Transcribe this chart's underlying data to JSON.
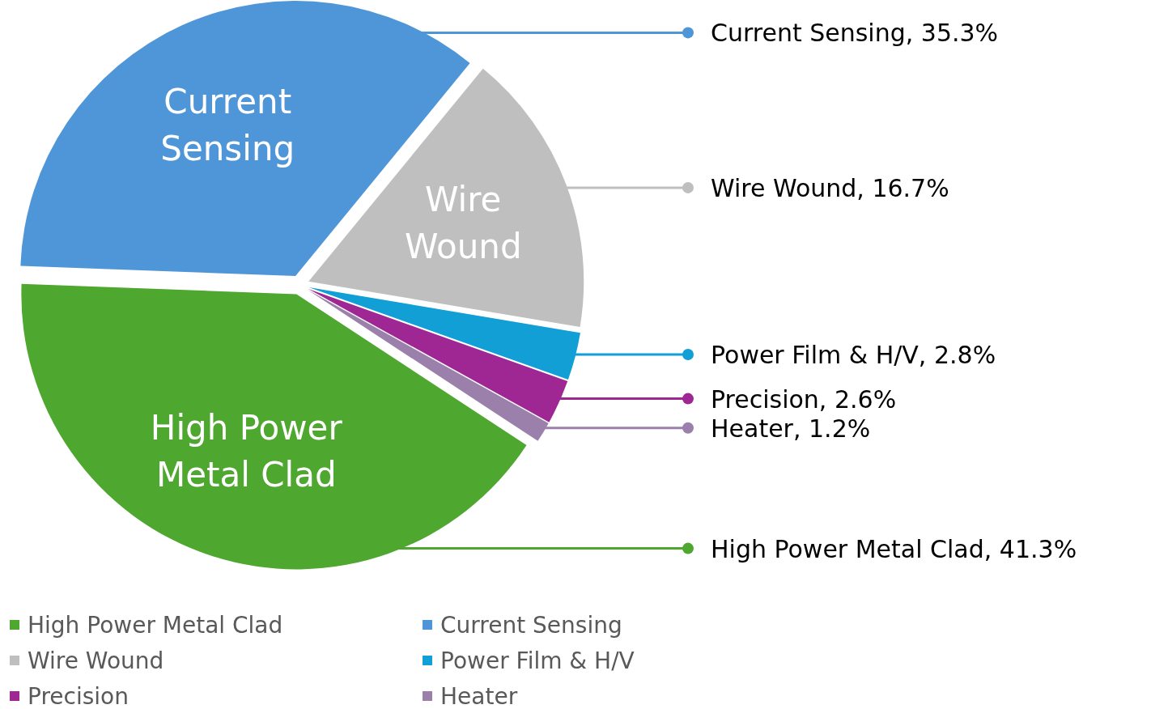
{
  "chart_data": {
    "type": "pie",
    "categories": [
      "High Power Metal Clad",
      "Current Sensing",
      "Wire Wound",
      "Power Film & H/V",
      "Precision",
      "Heater"
    ],
    "values": [
      41.3,
      35.3,
      16.7,
      2.8,
      2.6,
      1.2
    ],
    "colors": [
      "#4ea72e",
      "#4f96d9",
      "#bfbfbf",
      "#119fd6",
      "#9e2793",
      "#9a80ab"
    ],
    "value_labels": [
      "High Power Metal Clad, 41.3%",
      "Current Sensing, 35.3%",
      "Wire Wound, 16.7%",
      "Power Film & H/V, 2.8%",
      "Precision, 2.6%",
      "Heater, 1.2%"
    ],
    "legend": "bottom"
  }
}
